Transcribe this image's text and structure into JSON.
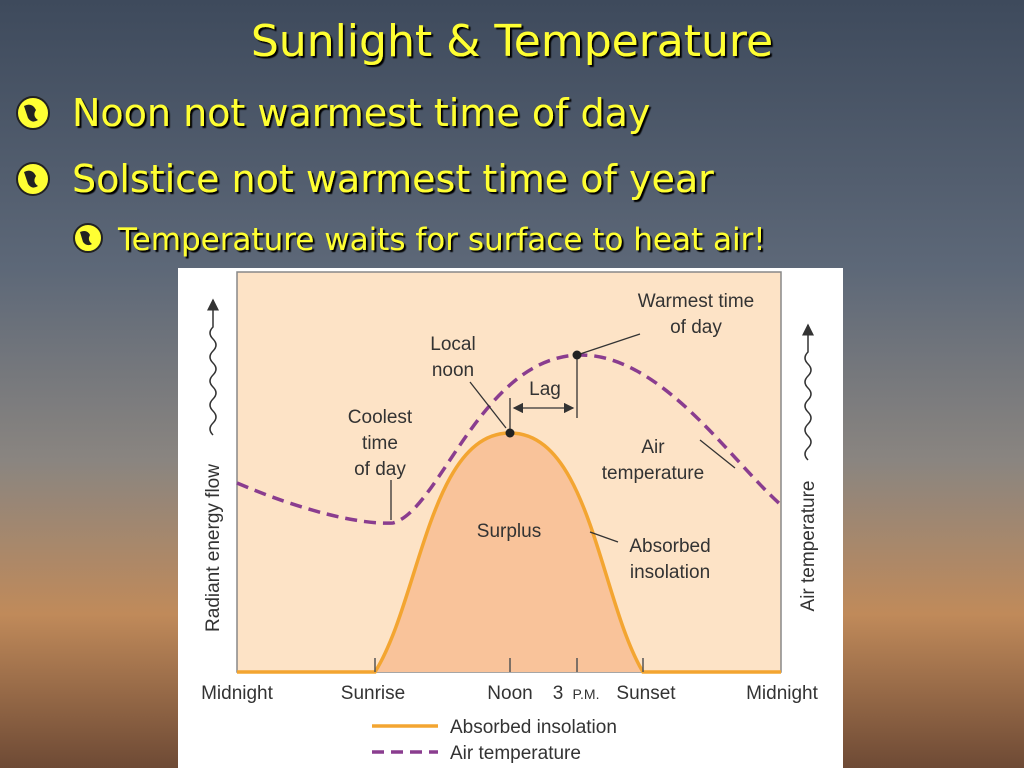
{
  "title": "Sunlight & Temperature",
  "bullets": [
    "Noon not warmest time of day",
    "Solstice not warmest time of year"
  ],
  "sub_bullets": [
    "Temperature waits for surface to heat air!"
  ],
  "figure": {
    "y_axis_left": "Radiant energy flow",
    "y_axis_right": "Air temperature",
    "x_labels": [
      "Midnight",
      "Sunrise",
      "Noon",
      "3",
      "Sunset",
      "Midnight"
    ],
    "pm": "P.M.",
    "annotations": {
      "warmest": [
        "Warmest time",
        "of day"
      ],
      "local_noon": [
        "Local",
        "noon"
      ],
      "lag": [
        "Lag"
      ],
      "coolest": [
        "Coolest",
        "time",
        "of day"
      ],
      "air": [
        "Air",
        "temperature"
      ],
      "surplus": [
        "Surplus"
      ],
      "absorbed": [
        "Absorbed",
        "insolation"
      ]
    },
    "legend": [
      "Absorbed insolation",
      "Air temperature"
    ]
  }
}
